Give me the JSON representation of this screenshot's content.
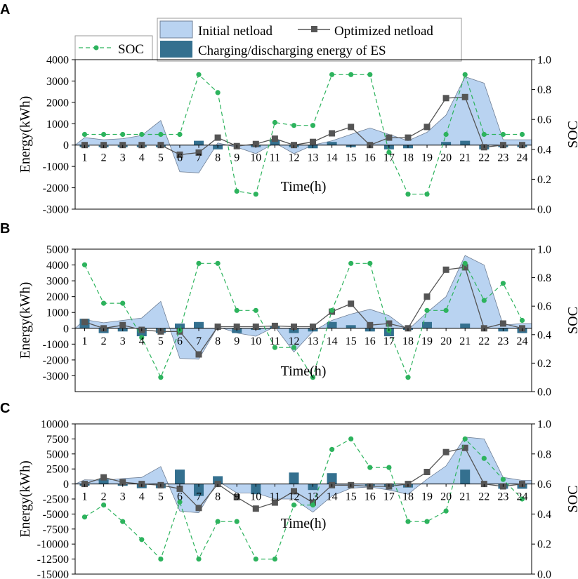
{
  "figure": {
    "legend": {
      "initial_label": "Initial netload",
      "optimized_label": "Optimized netload",
      "soc_label": "SOC",
      "es_label": "Charging/discharging energy of ES"
    },
    "colors": {
      "initial_fill": "#b9d3f1",
      "initial_stroke": "#6f7f95",
      "optimized": "#555555",
      "es_bar": "#34708f",
      "soc": "#2db35d"
    }
  },
  "chart_data": [
    {
      "panel": "A",
      "type": "area",
      "xlabel": "Time(h)",
      "ylabel": "Energy(kWh)",
      "y2label": "SOC",
      "x": [
        1,
        2,
        3,
        4,
        5,
        6,
        7,
        8,
        9,
        10,
        11,
        12,
        13,
        14,
        15,
        16,
        17,
        18,
        19,
        20,
        21,
        22,
        23,
        24
      ],
      "ylim": [
        -3000,
        4000
      ],
      "yticks": [
        -3000,
        -2000,
        -1000,
        0,
        1000,
        2000,
        3000,
        4000
      ],
      "y2lim": [
        0,
        1
      ],
      "y2ticks": [
        "0.0",
        "0.2",
        "0.4",
        "0.6",
        "0.8",
        "1.0"
      ],
      "series": [
        {
          "name": "Initial netload",
          "kind": "area",
          "values": [
            350,
            250,
            300,
            450,
            1150,
            -1250,
            -1300,
            100,
            -100,
            -400,
            100,
            -400,
            0,
            200,
            500,
            800,
            500,
            200,
            600,
            1400,
            3200,
            2900,
            250,
            250
          ]
        },
        {
          "name": "Optimized netload",
          "kind": "line",
          "values": [
            0,
            0,
            0,
            0,
            0,
            -450,
            -350,
            350,
            -50,
            50,
            300,
            0,
            150,
            550,
            850,
            0,
            350,
            350,
            850,
            2200,
            2250,
            -100,
            0,
            0
          ]
        },
        {
          "name": "Charging/discharging energy of ES",
          "kind": "bar",
          "values": [
            -100,
            -100,
            -100,
            -100,
            -100,
            0,
            200,
            -200,
            0,
            -100,
            250,
            -100,
            -150,
            150,
            -100,
            0,
            -200,
            -150,
            0,
            150,
            200,
            -200,
            -100,
            -100
          ]
        },
        {
          "name": "SOC",
          "kind": "line-secondary",
          "values": [
            0.5,
            0.5,
            0.5,
            0.5,
            0.5,
            0.5,
            0.9,
            0.78,
            0.12,
            0.1,
            0.58,
            0.56,
            0.56,
            0.9,
            0.9,
            0.9,
            0.38,
            0.1,
            0.1,
            0.5,
            0.9,
            0.5,
            0.5,
            0.5
          ]
        }
      ]
    },
    {
      "panel": "B",
      "type": "area",
      "xlabel": "Time(h)",
      "ylabel": "Energy(kWh)",
      "y2label": "SOC",
      "x": [
        1,
        2,
        3,
        4,
        5,
        6,
        7,
        8,
        9,
        10,
        11,
        12,
        13,
        14,
        15,
        16,
        17,
        18,
        19,
        20,
        21,
        22,
        23,
        24
      ],
      "ylim": [
        -4000,
        5000
      ],
      "yticks": [
        -3000,
        -2000,
        -1000,
        0,
        1000,
        2000,
        3000,
        4000,
        5000
      ],
      "y2lim": [
        0,
        1
      ],
      "y2ticks": [
        "0.0",
        "0.2",
        "0.4",
        "0.6",
        "0.8",
        "1.0"
      ],
      "series": [
        {
          "name": "Initial netload",
          "kind": "area",
          "values": [
            550,
            350,
            500,
            650,
            1700,
            -1900,
            -1950,
            100,
            -300,
            -500,
            100,
            -1500,
            -200,
            500,
            900,
            1200,
            800,
            -100,
            1000,
            2000,
            4600,
            4000,
            200,
            300
          ]
        },
        {
          "name": "Optimized netload",
          "kind": "line",
          "values": [
            400,
            0,
            200,
            -100,
            -200,
            -200,
            -1650,
            100,
            100,
            100,
            150,
            100,
            100,
            1050,
            1550,
            200,
            300,
            0,
            2000,
            3700,
            3850,
            0,
            300,
            0
          ]
        },
        {
          "name": "Charging/discharging energy of ES",
          "kind": "bar",
          "values": [
            600,
            -300,
            -200,
            -500,
            -300,
            300,
            400,
            0,
            -300,
            -100,
            150,
            -300,
            -200,
            400,
            200,
            -200,
            -500,
            -100,
            400,
            0,
            300,
            0,
            -200,
            -300
          ]
        },
        {
          "name": "SOC",
          "kind": "line-secondary",
          "values": [
            0.89,
            0.62,
            0.62,
            0.38,
            0.1,
            0.43,
            0.9,
            0.9,
            0.57,
            0.57,
            0.31,
            0.31,
            0.1,
            0.57,
            0.9,
            0.9,
            0.43,
            0.1,
            0.57,
            0.57,
            0.9,
            0.64,
            0.76,
            0.5
          ]
        }
      ]
    },
    {
      "panel": "C",
      "type": "area",
      "xlabel": "Time(h)",
      "ylabel": "Energy(kWh)",
      "y2label": "SOC",
      "x": [
        1,
        2,
        3,
        4,
        5,
        6,
        7,
        8,
        9,
        10,
        11,
        12,
        13,
        14,
        15,
        16,
        17,
        18,
        19,
        20,
        21,
        22,
        23,
        24
      ],
      "ylim": [
        -15000,
        10000
      ],
      "yticks": [
        -15000,
        -12500,
        -10000,
        -7500,
        -5000,
        -2500,
        0,
        2500,
        5000,
        7500,
        10000
      ],
      "y2lim": [
        0,
        1
      ],
      "y2ticks": [
        "0.0",
        "0.2",
        "0.4",
        "0.6",
        "0.8",
        "1.0"
      ],
      "series": [
        {
          "name": "Initial netload",
          "kind": "area",
          "values": [
            700,
            600,
            900,
            1100,
            2900,
            -4500,
            -4800,
            500,
            -1500,
            -1500,
            -2500,
            -2500,
            -4700,
            -2000,
            -700,
            -500,
            -1000,
            -1700,
            800,
            3000,
            7800,
            7500,
            1100,
            600
          ]
        },
        {
          "name": "Optimized netload",
          "kind": "line",
          "values": [
            0,
            1100,
            300,
            0,
            -200,
            -800,
            -4000,
            0,
            -2200,
            -4100,
            -3100,
            -1200,
            -3100,
            -200,
            -200,
            -400,
            -400,
            0,
            2000,
            5300,
            6000,
            0,
            -400,
            0
          ]
        },
        {
          "name": "Charging/discharging energy of ES",
          "kind": "bar",
          "values": [
            -300,
            800,
            -300,
            -700,
            -700,
            2400,
            -2000,
            1300,
            0,
            -1700,
            0,
            1900,
            -1000,
            1800,
            0,
            -400,
            -500,
            -600,
            0,
            0,
            2400,
            0,
            -800,
            -800
          ]
        },
        {
          "name": "SOC",
          "kind": "line-secondary",
          "values": [
            0.38,
            0.46,
            0.35,
            0.23,
            0.1,
            0.48,
            0.1,
            0.35,
            0.35,
            0.1,
            0.1,
            0.46,
            0.46,
            0.83,
            0.9,
            0.71,
            0.71,
            0.35,
            0.35,
            0.42,
            0.9,
            0.77,
            0.63,
            0.5
          ]
        }
      ]
    }
  ]
}
